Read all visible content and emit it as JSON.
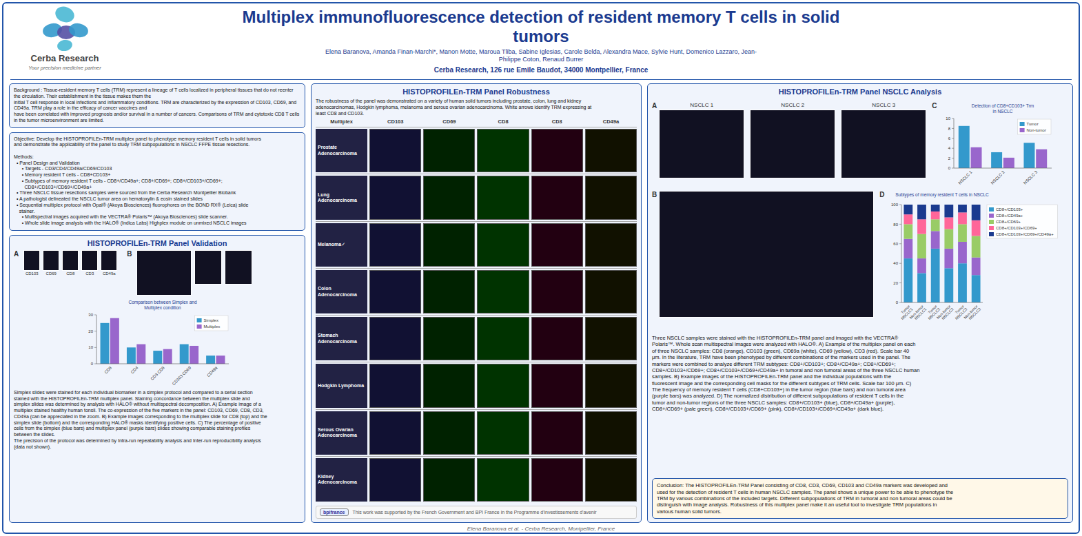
{
  "title": "Multiplex immunofluorescence detection of resident memory T cells in solid\ntumors",
  "annotations": [
    "Cerba Research",
    "Your precision medicine partner",
    "Elena Baranova, Amanda Finan-Marchi*, Manon Motte, Maroua Tliba, Sabine Iglesias, Carole Belda, Alexandra Mace, Sylvie Hunt, Domenico Lazzaro, Jean-\nPhilippe Coton, Renaud Burrer",
    "Cerba Research, 126 rue Emile Baudot, 34000 Montpellier, France",
    "Background : Tissue-resident memory T cells (TRM) represent a lineage of T cells localized in peripheral tissues that do not reenter the circulation. Their establishment in the tissue makes them the\ninitial T cell response in local infections and inflammatory conditions. TRM are characterized by the expression of CD103, CD69, and CD49a. TRM play a role in the efficacy of cancer vaccines and\nhave been correlated with improved prognosis and/or survival in a number of cancers. Comparisons of TRM and cytotoxic CD8 T cells in the tumor microenvironment are limited.",
    "Objective: Develop the HISTOPROFILEn-TRM multiplex panel to phenotype memory resident T cells in solid tumors\nand demonstrate the applicability of the panel to study TRM subpopulations in NSCLC FFPE tissue resections.\n\nMethods:\n  • Panel Design and Validation\n      • Targets - CD3/CD4/CD49a/CD69/CD103\n      • Memory resident T cells - CD8+CD103+\n      • Subtypes of memory resident T cells - CD8+/CD49a+; CD8+/CD69+; CD8+/CD103+/CD69+;\n        CD8+/CD103+/CD69+/CD49a+\n  • Three NSCLC tissue resections samples were sourced from the Cerba Research Montpellier Biobank\n  • A pathologist delineated the NSCLC tumor area on hematoxylin & eosin stained slides\n  • Sequential multiplex protocol with Opal® (Akoya Biosciences) fluorophores on the BOND RX® (Leica) slide\n    stainer.\n      • Multispectral images acquired with the VECTRA® Polaris™ (Akoya Biosciences) slide scanner.\n      • Whole slide image analysis with the HALO® (Indica Labs) Highplex module on unmixed NSCLC images",
    "HISTOPROFILEn-TRM Panel Validation",
    "A",
    "B",
    "Simplex slides were stained for each individual biomarker in a simplex protocol and compared to a serial section\nstained with the HISTOPROFILEn-TRM multiplex panel. Staining concordance between the multiplex slide and\nsimplex slides was determined by analysis with HALO® without multispectral decomposition. A) Example image of a\nmultiplex stained healthy human tonsil. The co-expression of the five markers in the panel: CD103, CD69, CD8, CD3,\nCD49a (can be appreciated in the zoom. B) Example images corresponding to the multiplex slide for CD8 (top) and the\nsimplex slide (bottom) and the corresponding HALO® masks identifying positive cells. C) The percentage of positive\ncells from the simplex (blue bars) and multiplex panel (purple bars) slides showing comparable staining profiles\nbetween the slides.\nThe precision of the protocol was determined by Intra-run repeatability analysis and Inter-run reproducibility analysis\n(data not shown).",
    "HISTOPROFILEn-TRM Panel Robustness",
    "The robustness of the panel was demonstrated on a variety of human solid tumors including prostate, colon, lung and kidney\nadenocarcinomas, Hodgkin lymphoma, melanoma and serous ovarian adenocarcinoma. White arrows identify TRM expressing at\nleast CD8 and CD103.",
    "bpifrance",
    "This work was supported by the French Government and BPI France in the Programme d'investissements d'avenir",
    "HISTOPROFILEn-TRM Panel NSCLC Analysis",
    "A",
    "C",
    "B",
    "D",
    "Three NSCLC samples were stained with the HISTOPROFILEn-TRM panel and imaged with the VECTRA®\nPolaris™. Whole scan multispectral images were analyzed with HALO®. A) Example of the multiplex panel on each\nof three NSCLC samples: CD8 (orange), CD103 (green), CD69a (white), CD69 (yellow), CD3 (red). Scale bar 40\nμm. In the literature, TRM have been phenotyped by different combinations of the markers used in the panel. The\nmarkers were combined to analyze different TRM subtypes: CD8+/CD103+; CD8+/CD49a+; CD8+/CD69+;\nCD8+/CD103+/CD69+; CD8+/CD103+/CD69+/CD49a+ in tumoral and non tumoral areas of the three NSCLC human\nsamples. B) Example images of the HISTOPROFILEn-TRM panel and the individual populations with the\nfluorescent image and the corresponding cell masks for the different subtypes of TRM cells. Scale bar 100 μm. C)\nThe frequency of memory resident T cells (CD8+CD103+) in the tumor region (blue bars) and non tumoral area\n(purple bars) was analyzed. D) The normalized distribution of different subpopulations of resident T cells in the\ntumor and non-tumor regions of the three NSCLC samples: CD8+/CD103+ (blue), CD8+/CD49a+ (purple),\nCD8+/CD69+ (pale green), CD8+/CD103+/CD69+ (pink), CD8+/CD103+/CD69+/CD49a+ (dark blue).",
    "Conclusion: The HISTOPROFILEn-TRM Panel consisting of CD8, CD3, CD69, CD103 and CD49a markers was developed and\nused for the detection of resident T cells in human NSCLC samples. The panel shows a unique power to be able to phenotype the\nTRM by various combinations of the included targets. Different subpopulations of TRM in tumoral and non tumoral areas could be\ndistinguish with image analysis. Robustness of this multiplex panel make it an useful tool to investigate TRM populations in\nvarious human solid tumors.",
    "Elena Baranova et al. - Cerba Research, Montpellier, France",
    "CD103",
    "CD69",
    "CD8",
    "CD3",
    "CD49a",
    "Multiplex",
    "CD103",
    "CD69",
    "CD8",
    "CD3",
    "CD49a",
    "Prostate Adenocarcinoma",
    "Lung Adenocarcinoma",
    "Melanoma✓",
    "Colon Adenocarcinoma",
    "Stomach Adenocarcinoma",
    "Hodgkin Lymphoma",
    "Serous Ovarian Adenocarcinoma",
    "Kidney Adenocarcinoma"
  ],
  "chart_data": [
    {
      "type": "bar",
      "title": "Comparison between Simplex and\nMultiplex condition",
      "categories": [
        "CD8",
        "CD4",
        "CD3 CD8",
        "CD103 CD69",
        "CD49a"
      ],
      "series": [
        {
          "name": "Simplex",
          "color": "#3399cc",
          "values": [
            25,
            10,
            8,
            12,
            5
          ]
        },
        {
          "name": "Multiplex",
          "color": "#9966cc",
          "values": [
            28,
            12,
            9,
            11,
            5
          ]
        }
      ],
      "ylim": [
        0,
        30
      ],
      "yticks": [
        0,
        10,
        20,
        30
      ],
      "grid": false,
      "legend": "upper right"
    },
    {
      "type": "bar",
      "title": "Detection of CD8+CD103+ Trm\nin NSCLC",
      "categories": [
        "NSCLC 1",
        "NSCLC 2",
        "NSCLC 3"
      ],
      "series": [
        {
          "name": "Tumor",
          "color": "#3399cc",
          "values": [
            8.5,
            3.2,
            5.1
          ]
        },
        {
          "name": "Non-tumor",
          "color": "#9966cc",
          "values": [
            4.2,
            2.1,
            3.8
          ]
        }
      ],
      "ylim": [
        0,
        10
      ],
      "yticks": [
        0,
        2,
        4,
        6,
        8,
        10
      ],
      "grid": false,
      "legend": "upper right"
    },
    {
      "type": "bar",
      "stacked": true,
      "title": "Subtypes of memory resident T cells in NSCLC",
      "categories": [
        "Tumor\nNSCLC1",
        "Non-tumor\nNSCLC1",
        "Tumor\nNSCLC2",
        "Non-tumor\nNSCLC2",
        "Tumor\nNSCLC3",
        "Non-tumor\nNSCLC3"
      ],
      "series": [
        {
          "name": "CD8+/CD103+",
          "color": "#3399cc",
          "values": [
            45,
            30,
            55,
            35,
            40,
            28
          ]
        },
        {
          "name": "CD8+/CD49a+",
          "color": "#9966cc",
          "values": [
            20,
            15,
            18,
            20,
            22,
            18
          ]
        },
        {
          "name": "CD8+/CD69+",
          "color": "#99cc66",
          "values": [
            15,
            25,
            12,
            20,
            18,
            22
          ]
        },
        {
          "name": "CD8+/CD103+/CD69+",
          "color": "#ff6699",
          "values": [
            10,
            15,
            8,
            12,
            12,
            16
          ]
        },
        {
          "name": "CD8+/CD103+/CD69+/CD49a+",
          "color": "#1a3a8f",
          "values": [
            10,
            15,
            7,
            13,
            8,
            16
          ]
        }
      ],
      "ylim": [
        0,
        100
      ],
      "yticks": [
        0,
        20,
        40,
        60,
        80,
        100
      ],
      "grid": false,
      "legend": "right"
    }
  ]
}
